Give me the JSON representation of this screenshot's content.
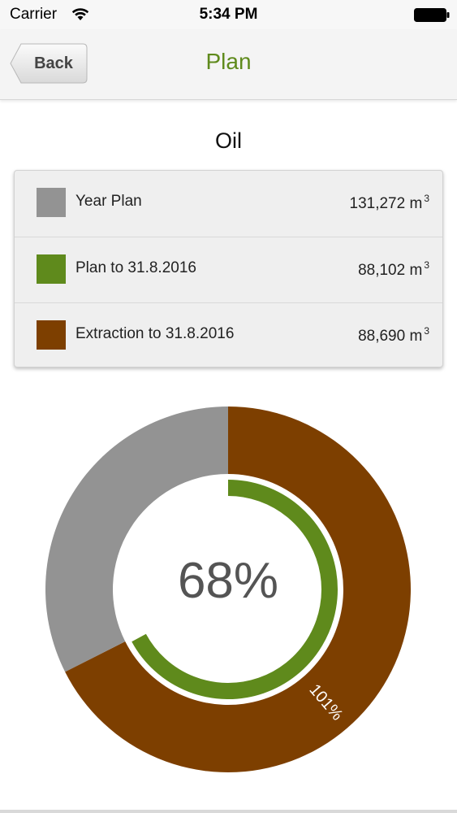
{
  "status_bar": {
    "carrier": "Carrier",
    "time": "5:34 PM",
    "wifi_icon": "wifi-icon",
    "battery_icon": "battery-icon"
  },
  "nav": {
    "back_label": "Back",
    "title": "Plan"
  },
  "section_title": "Oil",
  "legend": [
    {
      "label": "Year Plan",
      "value": "131,272 m",
      "unit_superscript": "3",
      "color": "#939393"
    },
    {
      "label": "Plan to 31.8.2016",
      "value": "88,102 m",
      "unit_superscript": "3",
      "color": "#5f8a1c"
    },
    {
      "label": "Extraction to 31.8.2016",
      "value": "88,690 m",
      "unit_superscript": "3",
      "color": "#7d3f00"
    }
  ],
  "colors": {
    "accent_green": "#5f8a1c",
    "year_plan_gray": "#939393",
    "extraction_brown": "#7d3f00"
  },
  "chart_data": {
    "type": "donut",
    "outer_ring": {
      "slices": [
        {
          "name": "Extraction to 31.8.2016",
          "value": 88690,
          "color": "#7d3f00"
        },
        {
          "name": "Year Plan",
          "value": 42582,
          "color": "#939393"
        }
      ],
      "label": "101%"
    },
    "inner_ring": {
      "name": "Plan to 31.8.2016",
      "fraction": 0.6711,
      "color": "#5f8a1c"
    },
    "center_label": "68%"
  }
}
